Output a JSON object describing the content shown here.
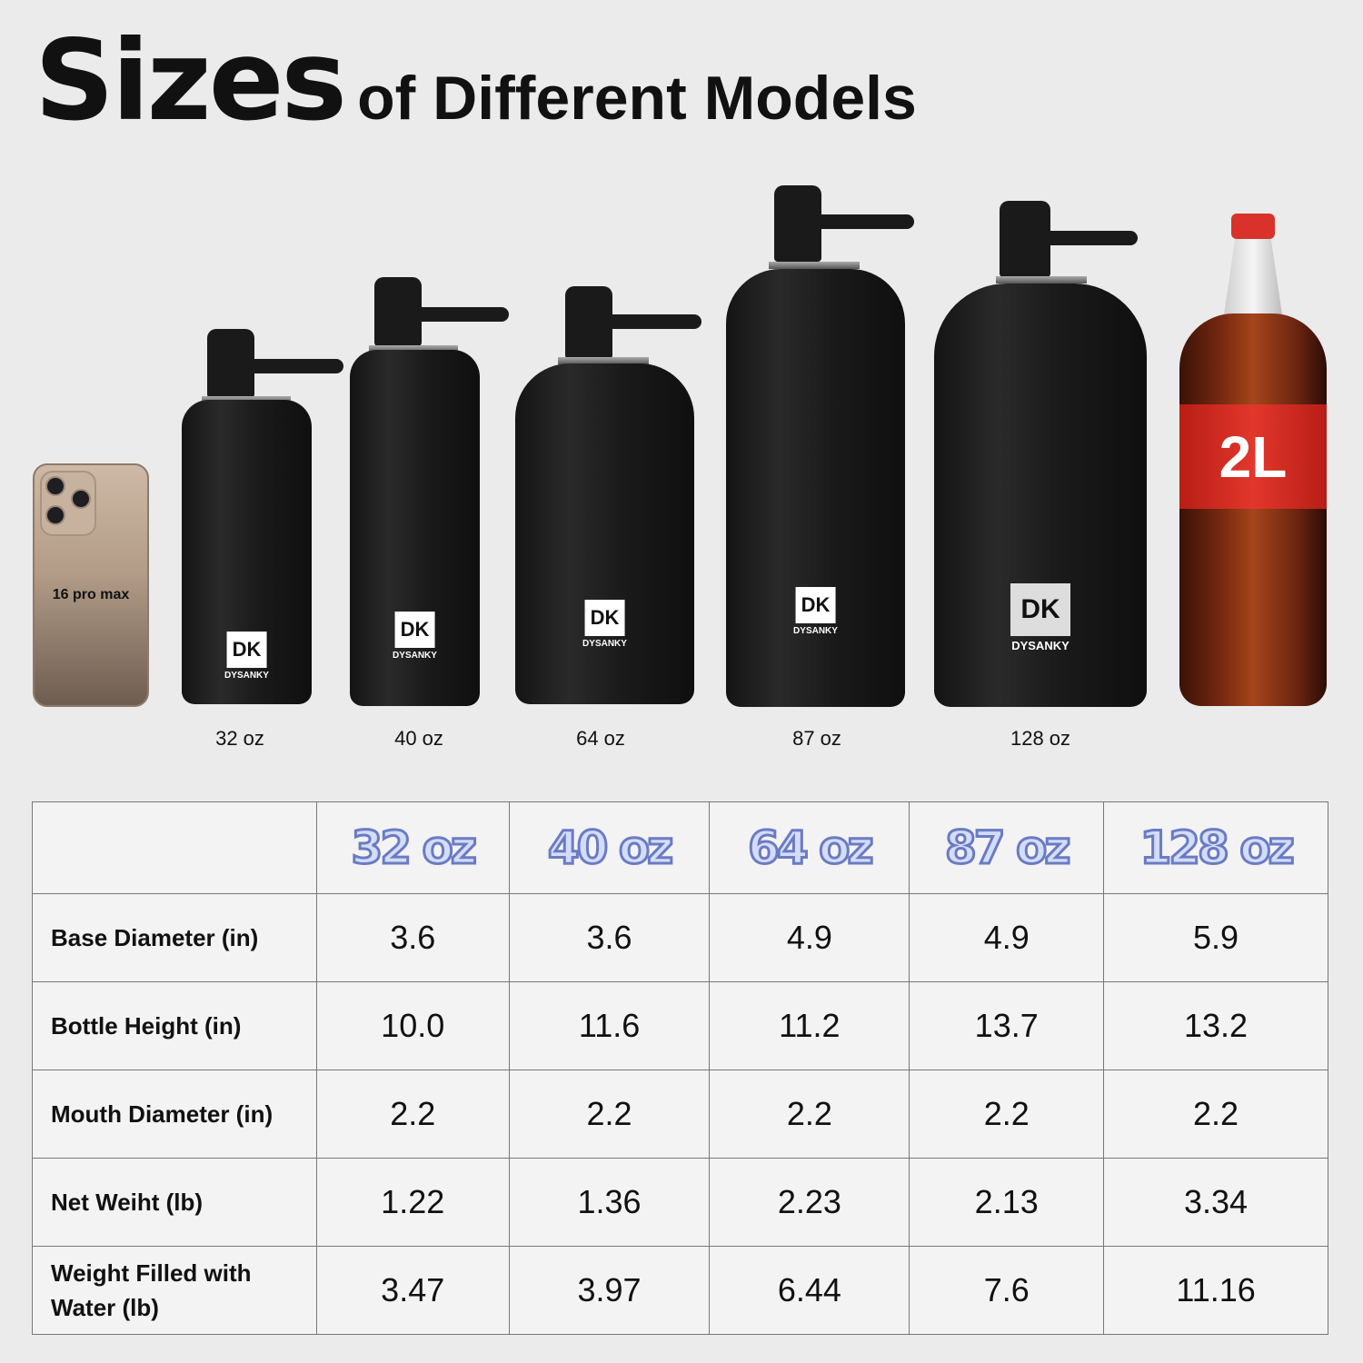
{
  "title": {
    "big": "Sizes",
    "rest": "of Different Models"
  },
  "phone": {
    "label": "16 pro max"
  },
  "brand": {
    "name": "DYSANKY",
    "mark": "DK"
  },
  "models": [
    "32 oz",
    "40 oz",
    "64 oz",
    "87 oz",
    "128 oz"
  ],
  "coke": {
    "label": "2L"
  },
  "table": {
    "headers": [
      "",
      "32 oz",
      "40 oz",
      "64 oz",
      "87 oz",
      "128 oz"
    ],
    "rows": [
      {
        "label": "Base Diameter (in)",
        "values": [
          "3.6",
          "3.6",
          "4.9",
          "4.9",
          "5.9"
        ]
      },
      {
        "label": "Bottle Height (in)",
        "values": [
          "10.0",
          "11.6",
          "11.2",
          "13.7",
          "13.2"
        ]
      },
      {
        "label": "Mouth Diameter (in)",
        "values": [
          "2.2",
          "2.2",
          "2.2",
          "2.2",
          "2.2"
        ]
      },
      {
        "label": "Net Weiht (lb)",
        "values": [
          "1.22",
          "1.36",
          "2.23",
          "2.13",
          "3.34"
        ]
      },
      {
        "label": "Weight Filled with Water (lb)",
        "values": [
          "3.47",
          "3.97",
          "6.44",
          "7.6",
          "11.16"
        ]
      }
    ]
  },
  "colors": {
    "header_fill": "#d3dcf8",
    "header_stroke": "#6b7bc2",
    "background": "#ebebeb",
    "coke_red": "#e2372b"
  }
}
